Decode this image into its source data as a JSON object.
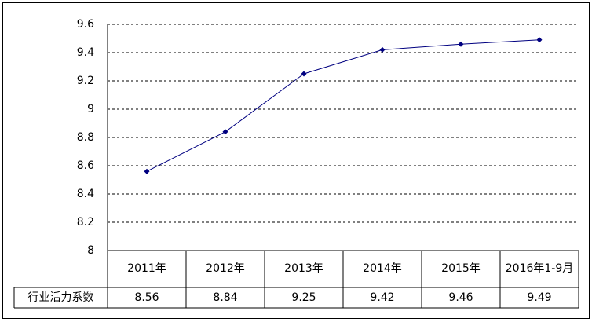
{
  "chart_data": {
    "type": "line",
    "categories": [
      "2011年",
      "2012年",
      "2013年",
      "2014年",
      "2015年",
      "2016年1-9月"
    ],
    "series": [
      {
        "name": "行业活力系数",
        "color": "#000080",
        "values": [
          8.56,
          8.84,
          9.25,
          9.42,
          9.46,
          9.49
        ]
      }
    ],
    "ylim": [
      8,
      9.6
    ],
    "yticks": [
      8,
      8.2,
      8.4,
      8.6,
      8.8,
      9,
      9.2,
      9.4,
      9.6
    ],
    "grid": true,
    "data_table": true
  }
}
